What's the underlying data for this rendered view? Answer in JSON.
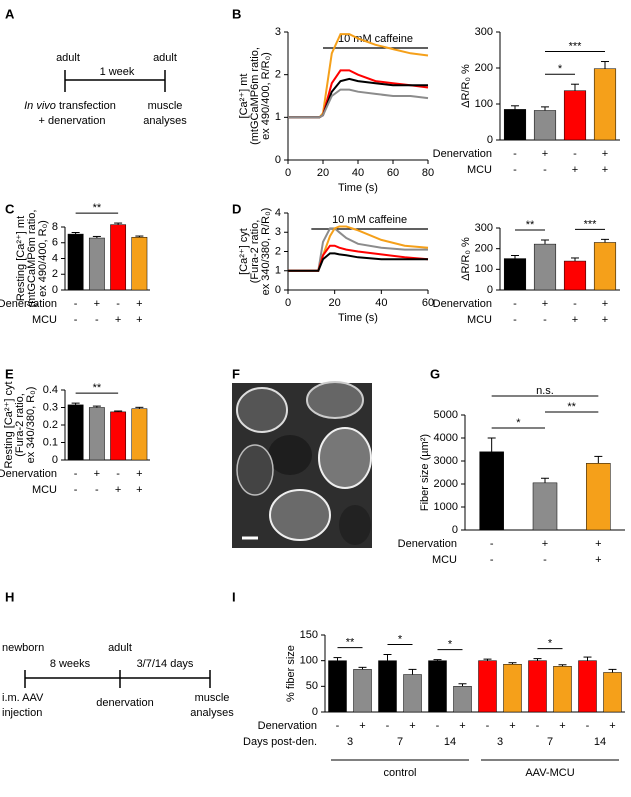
{
  "panel_labels": [
    "A",
    "B",
    "C",
    "D",
    "E",
    "F",
    "G",
    "H",
    "I"
  ],
  "timeline_a": {
    "start": "adult",
    "end": "adult",
    "interval": "1 week",
    "start_note_italic": "In vivo",
    "start_note": [
      "transfection",
      "+ denervation"
    ],
    "end_note": [
      "muscle",
      "analyses"
    ]
  },
  "timeline_h": {
    "points": [
      "newborn",
      "adult"
    ],
    "intervals": [
      "8 weeks",
      "3/7/14 days"
    ],
    "start_note": [
      "i.m. AAV",
      "injection"
    ],
    "middle_note": "denervation",
    "end_note": [
      "muscle",
      "analyses"
    ]
  },
  "chart_data": [
    {
      "type": "line",
      "x": [
        0,
        10,
        18,
        20,
        25,
        30,
        35,
        40,
        50,
        60,
        70,
        80
      ],
      "xlim": [
        0,
        80
      ],
      "xticks": [
        0,
        20,
        40,
        60,
        80
      ],
      "ylim": [
        0,
        3
      ],
      "yticks": [
        0,
        1,
        2,
        3
      ],
      "xlabel": "Time (s)",
      "ylabel": [
        "[Ca²⁺] mt",
        "(mtGCaMP6m ratio,",
        "ex 490/400, R/R₀)"
      ],
      "annotation": {
        "text": "10 mM caffeine",
        "span": [
          20,
          80
        ]
      },
      "series": [
        {
          "color": "#f5a01a",
          "values": [
            1,
            1,
            1,
            1.1,
            2.5,
            2.95,
            2.95,
            2.85,
            2.7,
            2.6,
            2.5,
            2.45
          ]
        },
        {
          "color": "#ff0000",
          "values": [
            1,
            1,
            1,
            1.05,
            1.8,
            2.1,
            2.1,
            2.0,
            1.85,
            1.8,
            1.75,
            1.7
          ]
        },
        {
          "color": "#000000",
          "values": [
            1,
            1,
            1,
            1.05,
            1.6,
            1.85,
            1.9,
            1.85,
            1.8,
            1.75,
            1.75,
            1.75
          ]
        },
        {
          "color": "#8c8c8c",
          "values": [
            1,
            1,
            1,
            1.05,
            1.5,
            1.65,
            1.65,
            1.6,
            1.55,
            1.5,
            1.5,
            1.45
          ]
        }
      ]
    },
    {
      "type": "bar",
      "ylim": [
        0,
        300
      ],
      "yticks": [
        0,
        100,
        200,
        300
      ],
      "ylabel": [
        "ΔR/R₀ %"
      ],
      "values": [
        85,
        82,
        137,
        198
      ],
      "errors": [
        10,
        10,
        18,
        20
      ],
      "colors": [
        "#000000",
        "#8c8c8c",
        "#ff0000",
        "#f5a01a"
      ],
      "rows": [
        {
          "label": "Denervation",
          "values": [
            "-",
            "+",
            "-",
            "+"
          ]
        },
        {
          "label": "MCU",
          "values": [
            "-",
            "-",
            "+",
            "+"
          ]
        }
      ],
      "brackets": [
        {
          "label": "*",
          "between": [
            1,
            2
          ]
        },
        {
          "label": "***",
          "between": [
            1,
            3
          ]
        }
      ]
    },
    {
      "type": "bar",
      "ylim": [
        0,
        8
      ],
      "yticks": [
        0,
        2,
        4,
        6,
        8
      ],
      "ylabel": [
        "Resting [Ca²⁺] mt",
        "(mtGCaMP6m ratio,",
        "ex 490/400, R₀)"
      ],
      "values": [
        7.1,
        6.6,
        8.3,
        6.7
      ],
      "errors": [
        0.2,
        0.2,
        0.2,
        0.15
      ],
      "colors": [
        "#000000",
        "#8c8c8c",
        "#ff0000",
        "#f5a01a"
      ],
      "rows": [
        {
          "label": "Denervation",
          "values": [
            "-",
            "+",
            "-",
            "+"
          ]
        },
        {
          "label": "MCU",
          "values": [
            "-",
            "-",
            "+",
            "+"
          ]
        }
      ],
      "brackets": [
        {
          "label": "**",
          "between": [
            0,
            2
          ]
        }
      ]
    },
    {
      "type": "line",
      "x": [
        0,
        10,
        13,
        15,
        18,
        20,
        22,
        25,
        30,
        40,
        50,
        60
      ],
      "xlim": [
        0,
        60
      ],
      "xticks": [
        0,
        20,
        40,
        60
      ],
      "ylim": [
        0,
        4
      ],
      "yticks": [
        0,
        1,
        2,
        3,
        4
      ],
      "xlabel": "Time (s)",
      "ylabel": [
        "[Ca²⁺] cyt",
        "(Fura-2 ratio,",
        "ex 340/380, R/R₀)"
      ],
      "annotation": {
        "text": "10 mM caffeine",
        "span": [
          10,
          60
        ]
      },
      "series": [
        {
          "color": "#8c8c8c",
          "values": [
            1,
            1,
            1,
            2.5,
            3.2,
            3.2,
            3.0,
            2.7,
            2.4,
            2.2,
            2.1,
            2.1
          ]
        },
        {
          "color": "#f5a01a",
          "values": [
            1,
            1,
            1,
            1.8,
            2.8,
            3.2,
            3.3,
            3.3,
            3.1,
            2.6,
            2.3,
            2.2
          ]
        },
        {
          "color": "#ff0000",
          "values": [
            1,
            1,
            1,
            1.8,
            2.3,
            2.3,
            2.2,
            2.1,
            2.0,
            1.85,
            1.7,
            1.6
          ]
        },
        {
          "color": "#000000",
          "values": [
            1,
            1,
            1,
            1.6,
            1.9,
            1.9,
            1.85,
            1.8,
            1.7,
            1.6,
            1.6,
            1.6
          ]
        }
      ]
    },
    {
      "type": "bar",
      "ylim": [
        0,
        300
      ],
      "yticks": [
        0,
        100,
        200,
        300
      ],
      "ylabel": [
        "ΔR/R₀ %"
      ],
      "values": [
        152,
        222,
        140,
        230
      ],
      "errors": [
        15,
        20,
        15,
        15
      ],
      "colors": [
        "#000000",
        "#8c8c8c",
        "#ff0000",
        "#f5a01a"
      ],
      "rows": [
        {
          "label": "Denervation",
          "values": [
            "-",
            "+",
            "-",
            "+"
          ]
        },
        {
          "label": "MCU",
          "values": [
            "-",
            "-",
            "+",
            "+"
          ]
        }
      ],
      "brackets": [
        {
          "label": "**",
          "between": [
            0,
            1
          ]
        },
        {
          "label": "***",
          "between": [
            2,
            3
          ]
        }
      ]
    },
    {
      "type": "bar",
      "ylim": [
        0,
        0.4
      ],
      "yticks": [
        0,
        0.1,
        0.2,
        0.3,
        0.4
      ],
      "ylabel": [
        "Resting [Ca²⁺] cyt",
        "(Fura-2 ratio,",
        "ex 340/380, R₀)"
      ],
      "values": [
        0.315,
        0.3,
        0.275,
        0.293
      ],
      "errors": [
        0.01,
        0.008,
        0.005,
        0.008
      ],
      "colors": [
        "#000000",
        "#8c8c8c",
        "#ff0000",
        "#f5a01a"
      ],
      "rows": [
        {
          "label": "Denervation",
          "values": [
            "-",
            "+",
            "-",
            "+"
          ]
        },
        {
          "label": "MCU",
          "values": [
            "-",
            "-",
            "+",
            "+"
          ]
        }
      ],
      "brackets": [
        {
          "label": "**",
          "between": [
            0,
            2
          ]
        }
      ]
    },
    {
      "type": "bar",
      "ylim": [
        0,
        5000
      ],
      "yticks": [
        0,
        1000,
        2000,
        3000,
        4000,
        5000
      ],
      "ylabel": [
        "Fiber size (µm²)"
      ],
      "values": [
        3400,
        2050,
        2900
      ],
      "errors": [
        600,
        200,
        300
      ],
      "colors": [
        "#000000",
        "#8c8c8c",
        "#f5a01a"
      ],
      "rows": [
        {
          "label": "Denervation",
          "values": [
            "-",
            "+",
            "+"
          ]
        },
        {
          "label": "MCU",
          "values": [
            "-",
            "-",
            "+"
          ]
        }
      ],
      "brackets": [
        {
          "label": "*",
          "between": [
            0,
            1
          ]
        },
        {
          "label": "**",
          "between": [
            1,
            2
          ]
        },
        {
          "label": "n.s.",
          "between": [
            0,
            2
          ]
        }
      ]
    },
    {
      "type": "bar",
      "ylim": [
        0,
        150
      ],
      "yticks": [
        0,
        50,
        100,
        150
      ],
      "ylabel": [
        "% fiber size"
      ],
      "values": [
        100,
        83,
        100,
        73,
        100,
        50,
        100,
        93,
        100,
        89,
        100,
        77
      ],
      "errors": [
        6,
        4,
        12,
        10,
        2,
        5,
        3,
        3,
        4,
        3,
        7,
        6
      ],
      "colors": [
        "#000000",
        "#8c8c8c",
        "#000000",
        "#8c8c8c",
        "#000000",
        "#8c8c8c",
        "#ff0000",
        "#f5a01a",
        "#ff0000",
        "#f5a01a",
        "#ff0000",
        "#f5a01a"
      ],
      "rows": [
        {
          "label": "Denervation",
          "values": [
            "-",
            "+",
            "-",
            "+",
            "-",
            "+",
            "-",
            "+",
            "-",
            "+",
            "-",
            "+"
          ]
        },
        {
          "label": "Days post-den.",
          "values": [
            "3",
            "7",
            "14",
            "3",
            "7",
            "14"
          ]
        }
      ],
      "brackets": [
        {
          "label": "**",
          "between": [
            0,
            1
          ]
        },
        {
          "label": "*",
          "between": [
            2,
            3
          ]
        },
        {
          "label": "*",
          "between": [
            4,
            5
          ]
        },
        {
          "label": "*",
          "between": [
            8,
            9
          ]
        }
      ],
      "groups": [
        "control",
        "AAV-MCU"
      ]
    }
  ]
}
